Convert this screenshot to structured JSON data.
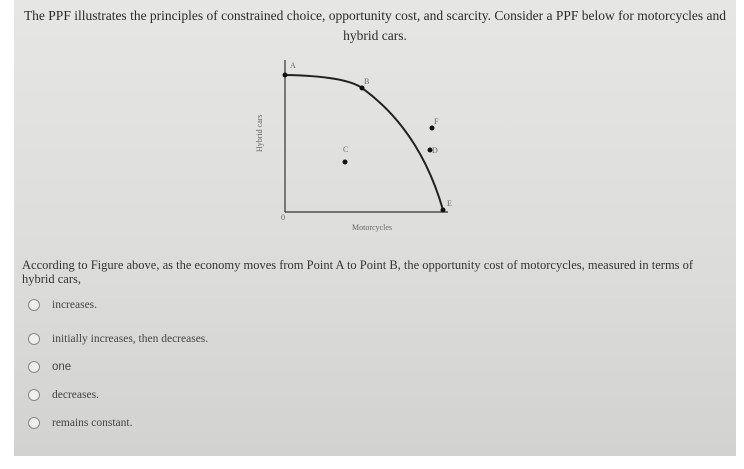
{
  "intro": "The PPF illustrates the principles of constrained choice, opportunity cost, and scarcity. Consider a PPF below for motorcycles and hybrid cars.",
  "figure": {
    "y_label": "Hybrid cars",
    "x_label": "Motorcycles",
    "origin": "0",
    "points": {
      "a": "A",
      "b": "B",
      "c": "C",
      "d": "D",
      "e": "E",
      "f": "F"
    }
  },
  "question": "According to Figure above, as the economy moves from Point A to Point B, the opportunity cost of motorcycles, measured in terms of hybrid cars,",
  "options": [
    "increases.",
    "initially increases, then decreases.",
    "one",
    "decreases.",
    "remains constant."
  ]
}
